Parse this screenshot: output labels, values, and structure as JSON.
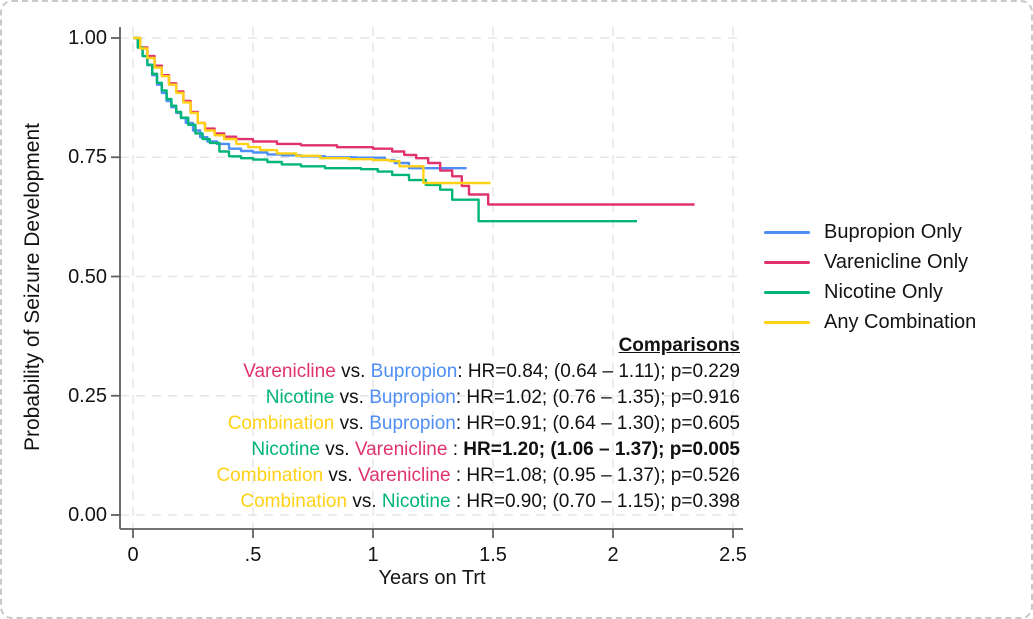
{
  "figure": {
    "y_axis": {
      "title": "Probability of Seizure Development",
      "ticks": [
        "1.00",
        "0.75",
        "0.50",
        "0.25",
        "0.00"
      ]
    },
    "x_axis": {
      "title": "Years on Trt",
      "ticks": [
        "0",
        ".5",
        "1",
        "1.5",
        "2",
        "2.5"
      ]
    },
    "legend": {
      "items": [
        {
          "label": "Bupropion Only",
          "color": "#4f8ef5"
        },
        {
          "label": "Varenicline Only",
          "color": "#e0336e"
        },
        {
          "label": "Nicotine Only",
          "color": "#00b577"
        },
        {
          "label": "Any Combination",
          "color": "#ffd117"
        }
      ]
    },
    "comparisons": {
      "title": "Comparisons",
      "vs_label": " vs. ",
      "rows": [
        {
          "a": "Varenicline",
          "a_color": "#e0336e",
          "b": "Bupropion",
          "b_color": "#4f8ef5",
          "colon": ": ",
          "stats": "HR=0.84; (0.64 – 1.11); p=0.229",
          "bold": false
        },
        {
          "a": "Nicotine",
          "a_color": "#00b577",
          "b": "Bupropion",
          "b_color": "#4f8ef5",
          "colon": ": ",
          "stats": "HR=1.02; (0.76 – 1.35); p=0.916",
          "bold": false
        },
        {
          "a": "Combination",
          "a_color": "#ffd117",
          "b": "Bupropion",
          "b_color": "#4f8ef5",
          "colon": ": ",
          "stats": "HR=0.91; (0.64 – 1.30); p=0.605",
          "bold": false
        },
        {
          "a": "Nicotine",
          "a_color": "#00b577",
          "b": "Varenicline",
          "b_color": "#e0336e",
          "colon": " : ",
          "stats": "HR=1.20; (1.06 – 1.37); p=0.005",
          "bold": true
        },
        {
          "a": "Combination",
          "a_color": "#ffd117",
          "b": "Varenicline",
          "b_color": "#e0336e",
          "colon": " : ",
          "stats": "HR=1.08; (0.95 – 1.37); p=0.526",
          "bold": false
        },
        {
          "a": "Combination",
          "a_color": "#ffd117",
          "b": "Nicotine",
          "b_color": "#00b577",
          "colon": " : ",
          "stats": "HR=0.90; (0.70 – 1.15); p=0.398",
          "bold": false
        }
      ]
    }
  },
  "chart_data": {
    "type": "line",
    "subtype": "kaplan-meier-step",
    "title": "",
    "xlabel": "Years on Trt",
    "ylabel": "Probability of Seizure Development",
    "xlim": [
      0,
      2.5
    ],
    "ylim": [
      0.0,
      1.0
    ],
    "x_ticks": [
      0,
      0.5,
      1,
      1.5,
      2,
      2.5
    ],
    "y_ticks": [
      0,
      0.25,
      0.5,
      0.75,
      1
    ],
    "grid": true,
    "legend_position": "right",
    "series": [
      {
        "name": "Bupropion Only",
        "color": "#4f8ef5",
        "points": [
          [
            0,
            1.0
          ],
          [
            0.02,
            0.98
          ],
          [
            0.04,
            0.962
          ],
          [
            0.06,
            0.943
          ],
          [
            0.08,
            0.922
          ],
          [
            0.1,
            0.902
          ],
          [
            0.12,
            0.885
          ],
          [
            0.14,
            0.868
          ],
          [
            0.16,
            0.855
          ],
          [
            0.18,
            0.843
          ],
          [
            0.2,
            0.832
          ],
          [
            0.22,
            0.822
          ],
          [
            0.25,
            0.806
          ],
          [
            0.28,
            0.792
          ],
          [
            0.31,
            0.783
          ],
          [
            0.35,
            0.778
          ],
          [
            0.4,
            0.768
          ],
          [
            0.45,
            0.763
          ],
          [
            0.5,
            0.76
          ],
          [
            0.56,
            0.756
          ],
          [
            0.62,
            0.754
          ],
          [
            0.7,
            0.752
          ],
          [
            0.8,
            0.75
          ],
          [
            0.93,
            0.749
          ],
          [
            1.05,
            0.744
          ],
          [
            1.09,
            0.738
          ],
          [
            1.15,
            0.727
          ],
          [
            1.39,
            0.727
          ]
        ]
      },
      {
        "name": "Varenicline Only",
        "color": "#e0336e",
        "points": [
          [
            0,
            1.0
          ],
          [
            0.03,
            0.98
          ],
          [
            0.06,
            0.962
          ],
          [
            0.09,
            0.942
          ],
          [
            0.12,
            0.922
          ],
          [
            0.15,
            0.905
          ],
          [
            0.18,
            0.888
          ],
          [
            0.21,
            0.868
          ],
          [
            0.24,
            0.845
          ],
          [
            0.27,
            0.822
          ],
          [
            0.3,
            0.81
          ],
          [
            0.34,
            0.8
          ],
          [
            0.38,
            0.793
          ],
          [
            0.43,
            0.788
          ],
          [
            0.5,
            0.783
          ],
          [
            0.6,
            0.778
          ],
          [
            0.7,
            0.775
          ],
          [
            0.85,
            0.771
          ],
          [
            1.0,
            0.768
          ],
          [
            1.08,
            0.762
          ],
          [
            1.13,
            0.755
          ],
          [
            1.18,
            0.748
          ],
          [
            1.23,
            0.738
          ],
          [
            1.28,
            0.722
          ],
          [
            1.33,
            0.71
          ],
          [
            1.37,
            0.69
          ],
          [
            1.4,
            0.672
          ],
          [
            1.48,
            0.651
          ],
          [
            2.34,
            0.651
          ]
        ]
      },
      {
        "name": "Nicotine Only",
        "color": "#00b577",
        "points": [
          [
            0,
            1.0
          ],
          [
            0.02,
            0.98
          ],
          [
            0.04,
            0.962
          ],
          [
            0.06,
            0.944
          ],
          [
            0.08,
            0.925
          ],
          [
            0.1,
            0.906
          ],
          [
            0.12,
            0.89
          ],
          [
            0.14,
            0.872
          ],
          [
            0.16,
            0.858
          ],
          [
            0.18,
            0.845
          ],
          [
            0.2,
            0.833
          ],
          [
            0.23,
            0.818
          ],
          [
            0.26,
            0.8
          ],
          [
            0.29,
            0.788
          ],
          [
            0.32,
            0.78
          ],
          [
            0.36,
            0.762
          ],
          [
            0.4,
            0.752
          ],
          [
            0.45,
            0.748
          ],
          [
            0.5,
            0.745
          ],
          [
            0.56,
            0.74
          ],
          [
            0.62,
            0.735
          ],
          [
            0.7,
            0.731
          ],
          [
            0.8,
            0.727
          ],
          [
            0.95,
            0.725
          ],
          [
            1.02,
            0.72
          ],
          [
            1.08,
            0.713
          ],
          [
            1.15,
            0.702
          ],
          [
            1.22,
            0.692
          ],
          [
            1.28,
            0.682
          ],
          [
            1.33,
            0.661
          ],
          [
            1.44,
            0.616
          ],
          [
            2.1,
            0.616
          ]
        ]
      },
      {
        "name": "Any Combination",
        "color": "#ffd117",
        "points": [
          [
            0,
            1.0
          ],
          [
            0.03,
            0.978
          ],
          [
            0.06,
            0.958
          ],
          [
            0.09,
            0.938
          ],
          [
            0.12,
            0.92
          ],
          [
            0.15,
            0.902
          ],
          [
            0.18,
            0.885
          ],
          [
            0.21,
            0.865
          ],
          [
            0.24,
            0.843
          ],
          [
            0.27,
            0.822
          ],
          [
            0.3,
            0.806
          ],
          [
            0.34,
            0.796
          ],
          [
            0.38,
            0.788
          ],
          [
            0.43,
            0.778
          ],
          [
            0.48,
            0.771
          ],
          [
            0.53,
            0.765
          ],
          [
            0.6,
            0.758
          ],
          [
            0.68,
            0.753
          ],
          [
            0.78,
            0.748
          ],
          [
            0.9,
            0.746
          ],
          [
            1.0,
            0.744
          ],
          [
            1.07,
            0.742
          ],
          [
            1.11,
            0.731
          ],
          [
            1.21,
            0.696
          ],
          [
            1.49,
            0.696
          ]
        ]
      }
    ]
  }
}
